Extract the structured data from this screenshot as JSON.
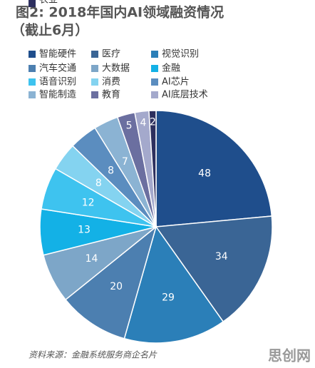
{
  "chart_data": {
    "type": "pie",
    "title": "图2: 2018年国内AI领域融资情况",
    "subtitle": "（截止6月）",
    "categories": [
      "智能硬件",
      "医疗",
      "视觉识别",
      "汽车交通",
      "大数据",
      "金融",
      "语音识别",
      "消费",
      "AI芯片",
      "智能制造",
      "教育",
      "AI底层技术",
      "农业"
    ],
    "values": [
      48,
      34,
      29,
      20,
      14,
      13,
      12,
      8,
      8,
      7,
      5,
      4,
      2
    ],
    "colors": [
      "#1f4e8c",
      "#3a6595",
      "#2b7fb8",
      "#4c7fb0",
      "#7da6c8",
      "#13b1e6",
      "#3ec3ef",
      "#84d3f0",
      "#5b8dbf",
      "#8bb3d3",
      "#6b6fa0",
      "#a4a9cc",
      "#2d2f5e"
    ],
    "source": "资料来源：金融系统服务商企名片",
    "watermark": "思创网"
  }
}
